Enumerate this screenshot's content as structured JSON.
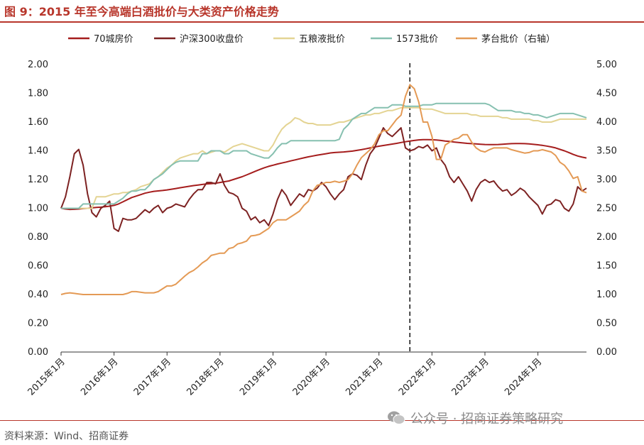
{
  "title": "图 9：2015 年至今高端白酒批价与大类资产价格走势",
  "source": "资料来源：Wind、招商证券",
  "watermark": "公众号 · 招商证券策略研究",
  "chart_data": {
    "type": "line",
    "x": [
      "2015-01",
      "2015-02",
      "2015-03",
      "2015-04",
      "2015-05",
      "2015-06",
      "2015-07",
      "2015-08",
      "2015-09",
      "2015-10",
      "2015-11",
      "2015-12",
      "2016-01",
      "2016-02",
      "2016-03",
      "2016-04",
      "2016-05",
      "2016-06",
      "2016-07",
      "2016-08",
      "2016-09",
      "2016-10",
      "2016-11",
      "2016-12",
      "2017-01",
      "2017-02",
      "2017-03",
      "2017-04",
      "2017-05",
      "2017-06",
      "2017-07",
      "2017-08",
      "2017-09",
      "2017-10",
      "2017-11",
      "2017-12",
      "2018-01",
      "2018-02",
      "2018-03",
      "2018-04",
      "2018-05",
      "2018-06",
      "2018-07",
      "2018-08",
      "2018-09",
      "2018-10",
      "2018-11",
      "2018-12",
      "2019-01",
      "2019-02",
      "2019-03",
      "2019-04",
      "2019-05",
      "2019-06",
      "2019-07",
      "2019-08",
      "2019-09",
      "2019-10",
      "2019-11",
      "2019-12",
      "2020-01",
      "2020-02",
      "2020-03",
      "2020-04",
      "2020-05",
      "2020-06",
      "2020-07",
      "2020-08",
      "2020-09",
      "2020-10",
      "2020-11",
      "2020-12",
      "2021-01",
      "2021-02",
      "2021-03",
      "2021-04",
      "2021-05",
      "2021-06",
      "2021-07",
      "2021-08",
      "2021-09",
      "2021-10",
      "2021-11",
      "2021-12",
      "2022-01",
      "2022-02",
      "2022-03",
      "2022-04",
      "2022-05",
      "2022-06",
      "2022-07",
      "2022-08",
      "2022-09",
      "2022-10",
      "2022-11",
      "2022-12",
      "2023-01",
      "2023-02",
      "2023-03",
      "2023-04",
      "2023-05",
      "2023-06",
      "2023-07",
      "2023-08",
      "2023-09",
      "2023-10",
      "2023-11",
      "2023-12",
      "2024-01",
      "2024-02",
      "2024-03",
      "2024-04",
      "2024-05",
      "2024-06",
      "2024-07",
      "2024-08",
      "2024-09",
      "2024-10",
      "2024-11",
      "2024-12"
    ],
    "x_tick_labels": [
      "2015年1月",
      "2016年1月",
      "2017年1月",
      "2018年1月",
      "2019年1月",
      "2020年1月",
      "2021年1月",
      "2022年1月",
      "2023年1月",
      "2024年1月"
    ],
    "y_left": {
      "min": 0,
      "max": 2,
      "ticks": [
        "0.00",
        "0.20",
        "0.40",
        "0.60",
        "0.80",
        "1.00",
        "1.20",
        "1.40",
        "1.60",
        "1.80",
        "2.00"
      ]
    },
    "y_right": {
      "min": 0,
      "max": 5,
      "ticks": [
        "0.00",
        "0.50",
        "1.00",
        "1.50",
        "2.00",
        "2.50",
        "3.00",
        "3.50",
        "4.00",
        "4.50",
        "5.00"
      ]
    },
    "reference_line": {
      "x": "2021-08",
      "style": "dashed",
      "color": "#111111"
    },
    "series": [
      {
        "name": "70城房价",
        "color": "#a51d1d",
        "axis": "left",
        "values": [
          1.0,
          0.995,
          0.992,
          0.993,
          0.995,
          0.998,
          1.0,
          1.003,
          1.006,
          1.008,
          1.011,
          1.015,
          1.02,
          1.03,
          1.045,
          1.06,
          1.075,
          1.085,
          1.095,
          1.105,
          1.112,
          1.118,
          1.121,
          1.124,
          1.128,
          1.133,
          1.138,
          1.143,
          1.148,
          1.153,
          1.158,
          1.162,
          1.166,
          1.17,
          1.172,
          1.175,
          1.18,
          1.185,
          1.19,
          1.2,
          1.21,
          1.22,
          1.232,
          1.245,
          1.258,
          1.27,
          1.282,
          1.292,
          1.3,
          1.308,
          1.315,
          1.322,
          1.33,
          1.337,
          1.344,
          1.351,
          1.358,
          1.364,
          1.37,
          1.375,
          1.38,
          1.385,
          1.388,
          1.39,
          1.392,
          1.395,
          1.398,
          1.403,
          1.408,
          1.414,
          1.42,
          1.426,
          1.432,
          1.437,
          1.442,
          1.447,
          1.452,
          1.458,
          1.463,
          1.468,
          1.472,
          1.476,
          1.478,
          1.478,
          1.477,
          1.475,
          1.472,
          1.468,
          1.465,
          1.461,
          1.458,
          1.455,
          1.452,
          1.45,
          1.448,
          1.446,
          1.444,
          1.443,
          1.443,
          1.444,
          1.446,
          1.448,
          1.45,
          1.451,
          1.451,
          1.45,
          1.448,
          1.445,
          1.442,
          1.438,
          1.433,
          1.427,
          1.42,
          1.41,
          1.4,
          1.388,
          1.375,
          1.364,
          1.356,
          1.35
        ]
      },
      {
        "name": "沪深300收盘价",
        "color": "#7d2222",
        "axis": "left",
        "values": [
          1.0,
          1.08,
          1.22,
          1.38,
          1.41,
          1.3,
          1.1,
          0.97,
          0.94,
          1.0,
          1.02,
          1.05,
          0.86,
          0.84,
          0.93,
          0.92,
          0.92,
          0.93,
          0.96,
          0.99,
          0.97,
          1.0,
          1.02,
          0.97,
          1.0,
          1.01,
          1.03,
          1.02,
          1.01,
          1.06,
          1.1,
          1.13,
          1.13,
          1.18,
          1.18,
          1.17,
          1.24,
          1.16,
          1.11,
          1.1,
          1.08,
          1.0,
          0.98,
          0.92,
          0.94,
          0.9,
          0.92,
          0.88,
          0.96,
          1.06,
          1.13,
          1.09,
          1.02,
          1.06,
          1.1,
          1.08,
          1.13,
          1.12,
          1.14,
          1.18,
          1.15,
          1.1,
          1.06,
          1.1,
          1.13,
          1.22,
          1.24,
          1.23,
          1.2,
          1.3,
          1.38,
          1.42,
          1.49,
          1.56,
          1.52,
          1.5,
          1.53,
          1.56,
          1.42,
          1.4,
          1.41,
          1.43,
          1.42,
          1.44,
          1.4,
          1.42,
          1.34,
          1.3,
          1.22,
          1.18,
          1.22,
          1.17,
          1.12,
          1.05,
          1.13,
          1.18,
          1.2,
          1.18,
          1.19,
          1.15,
          1.12,
          1.13,
          1.09,
          1.11,
          1.14,
          1.12,
          1.08,
          1.05,
          1.02,
          0.96,
          1.02,
          1.03,
          1.06,
          1.05,
          1.0,
          0.98,
          1.03,
          1.15,
          1.12,
          1.14
        ]
      },
      {
        "name": "五粮液批价",
        "color": "#e4d493",
        "axis": "left",
        "values": [
          1.0,
          1.0,
          1.0,
          1.0,
          1.0,
          1.0,
          1.0,
          1.0,
          1.08,
          1.08,
          1.08,
          1.09,
          1.1,
          1.1,
          1.11,
          1.11,
          1.12,
          1.13,
          1.15,
          1.16,
          1.17,
          1.2,
          1.22,
          1.25,
          1.28,
          1.3,
          1.33,
          1.35,
          1.36,
          1.37,
          1.38,
          1.38,
          1.4,
          1.38,
          1.39,
          1.4,
          1.4,
          1.39,
          1.41,
          1.43,
          1.44,
          1.45,
          1.44,
          1.43,
          1.42,
          1.41,
          1.4,
          1.4,
          1.44,
          1.5,
          1.55,
          1.58,
          1.6,
          1.63,
          1.62,
          1.6,
          1.59,
          1.59,
          1.58,
          1.58,
          1.58,
          1.58,
          1.59,
          1.6,
          1.6,
          1.61,
          1.62,
          1.63,
          1.64,
          1.65,
          1.65,
          1.66,
          1.66,
          1.67,
          1.68,
          1.68,
          1.69,
          1.7,
          1.7,
          1.7,
          1.7,
          1.7,
          1.69,
          1.69,
          1.69,
          1.68,
          1.67,
          1.66,
          1.66,
          1.66,
          1.66,
          1.66,
          1.66,
          1.65,
          1.65,
          1.64,
          1.64,
          1.64,
          1.64,
          1.64,
          1.63,
          1.63,
          1.62,
          1.62,
          1.62,
          1.62,
          1.62,
          1.61,
          1.61,
          1.6,
          1.6,
          1.6,
          1.61,
          1.62,
          1.62,
          1.62,
          1.62,
          1.62,
          1.62,
          1.62
        ]
      },
      {
        "name": "1573批价",
        "color": "#86c0b0",
        "axis": "left",
        "values": [
          1.0,
          1.0,
          1.0,
          1.0,
          1.0,
          1.03,
          1.03,
          1.03,
          1.03,
          1.03,
          1.03,
          1.03,
          1.03,
          1.05,
          1.07,
          1.1,
          1.12,
          1.12,
          1.13,
          1.13,
          1.16,
          1.2,
          1.22,
          1.24,
          1.27,
          1.3,
          1.32,
          1.33,
          1.33,
          1.33,
          1.33,
          1.33,
          1.38,
          1.38,
          1.4,
          1.4,
          1.4,
          1.38,
          1.38,
          1.4,
          1.4,
          1.4,
          1.4,
          1.38,
          1.37,
          1.36,
          1.35,
          1.35,
          1.38,
          1.42,
          1.45,
          1.45,
          1.47,
          1.47,
          1.47,
          1.47,
          1.47,
          1.47,
          1.47,
          1.47,
          1.47,
          1.47,
          1.47,
          1.48,
          1.55,
          1.58,
          1.62,
          1.64,
          1.66,
          1.66,
          1.68,
          1.7,
          1.7,
          1.7,
          1.7,
          1.72,
          1.72,
          1.72,
          1.71,
          1.71,
          1.71,
          1.71,
          1.72,
          1.72,
          1.72,
          1.73,
          1.73,
          1.73,
          1.73,
          1.73,
          1.73,
          1.73,
          1.73,
          1.73,
          1.73,
          1.73,
          1.73,
          1.72,
          1.7,
          1.68,
          1.68,
          1.68,
          1.68,
          1.67,
          1.67,
          1.66,
          1.66,
          1.65,
          1.65,
          1.64,
          1.63,
          1.64,
          1.65,
          1.66,
          1.66,
          1.66,
          1.66,
          1.65,
          1.64,
          1.63
        ]
      },
      {
        "name": "茅台批价（右轴）",
        "color": "#e49a55",
        "axis": "right",
        "values": [
          1.0,
          1.02,
          1.03,
          1.02,
          1.01,
          1.0,
          1.0,
          1.0,
          1.0,
          1.0,
          1.0,
          1.0,
          1.0,
          1.0,
          1.0,
          1.02,
          1.05,
          1.05,
          1.04,
          1.03,
          1.03,
          1.03,
          1.05,
          1.1,
          1.15,
          1.15,
          1.18,
          1.25,
          1.32,
          1.38,
          1.42,
          1.48,
          1.55,
          1.6,
          1.68,
          1.7,
          1.72,
          1.72,
          1.8,
          1.82,
          1.88,
          1.9,
          1.93,
          2.02,
          2.03,
          2.05,
          2.1,
          2.15,
          2.25,
          2.3,
          2.3,
          2.3,
          2.35,
          2.4,
          2.45,
          2.55,
          2.62,
          2.8,
          2.9,
          2.92,
          2.95,
          2.95,
          2.97,
          2.95,
          2.97,
          3.0,
          3.1,
          3.25,
          3.38,
          3.45,
          3.52,
          3.62,
          3.78,
          3.85,
          3.85,
          3.95,
          4.05,
          4.12,
          4.45,
          4.65,
          4.58,
          4.35,
          4.0,
          4.0,
          3.75,
          3.35,
          3.35,
          3.6,
          3.65,
          3.7,
          3.72,
          3.78,
          3.78,
          3.65,
          3.55,
          3.5,
          3.48,
          3.52,
          3.55,
          3.55,
          3.55,
          3.55,
          3.52,
          3.5,
          3.48,
          3.46,
          3.47,
          3.5,
          3.5,
          3.52,
          3.5,
          3.48,
          3.42,
          3.3,
          3.25,
          3.15,
          3.02,
          3.05,
          2.8,
          2.77
        ]
      }
    ]
  }
}
